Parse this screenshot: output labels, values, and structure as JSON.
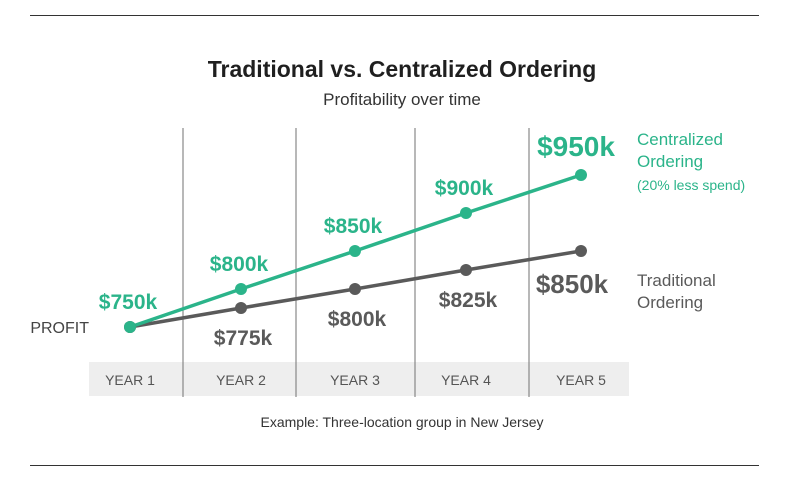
{
  "chart_data": {
    "type": "line",
    "title": "Traditional vs. Centralized Ordering",
    "subtitle": "Profitability over time",
    "ylabel": "PROFIT",
    "categories": [
      "YEAR 1",
      "YEAR 2",
      "YEAR 3",
      "YEAR 4",
      "YEAR 5"
    ],
    "ylim": [
      750,
      950
    ],
    "grid": "vertical",
    "legend": "right",
    "series": [
      {
        "name": "Centralized Ordering",
        "legend_lines": [
          "Centralized",
          "Ordering"
        ],
        "note": "(20% less spend)",
        "values": [
          750,
          800,
          850,
          900,
          950
        ],
        "labels": [
          "$750k",
          "$800k",
          "$850k",
          "$900k",
          "$950k"
        ],
        "color": "#2bb48a"
      },
      {
        "name": "Traditional Ordering",
        "legend_lines": [
          "Traditional",
          "Ordering"
        ],
        "values": [
          750,
          775,
          800,
          825,
          850
        ],
        "labels": [
          "",
          "$775k",
          "$800k",
          "$825k",
          "$850k"
        ],
        "color": "#5a5a5a"
      }
    ],
    "footnote": "Example: Three-location group in New Jersey"
  },
  "colors": {
    "axis_band": "#eeeeee",
    "grid": "#888888",
    "axis_text": "#555555"
  }
}
